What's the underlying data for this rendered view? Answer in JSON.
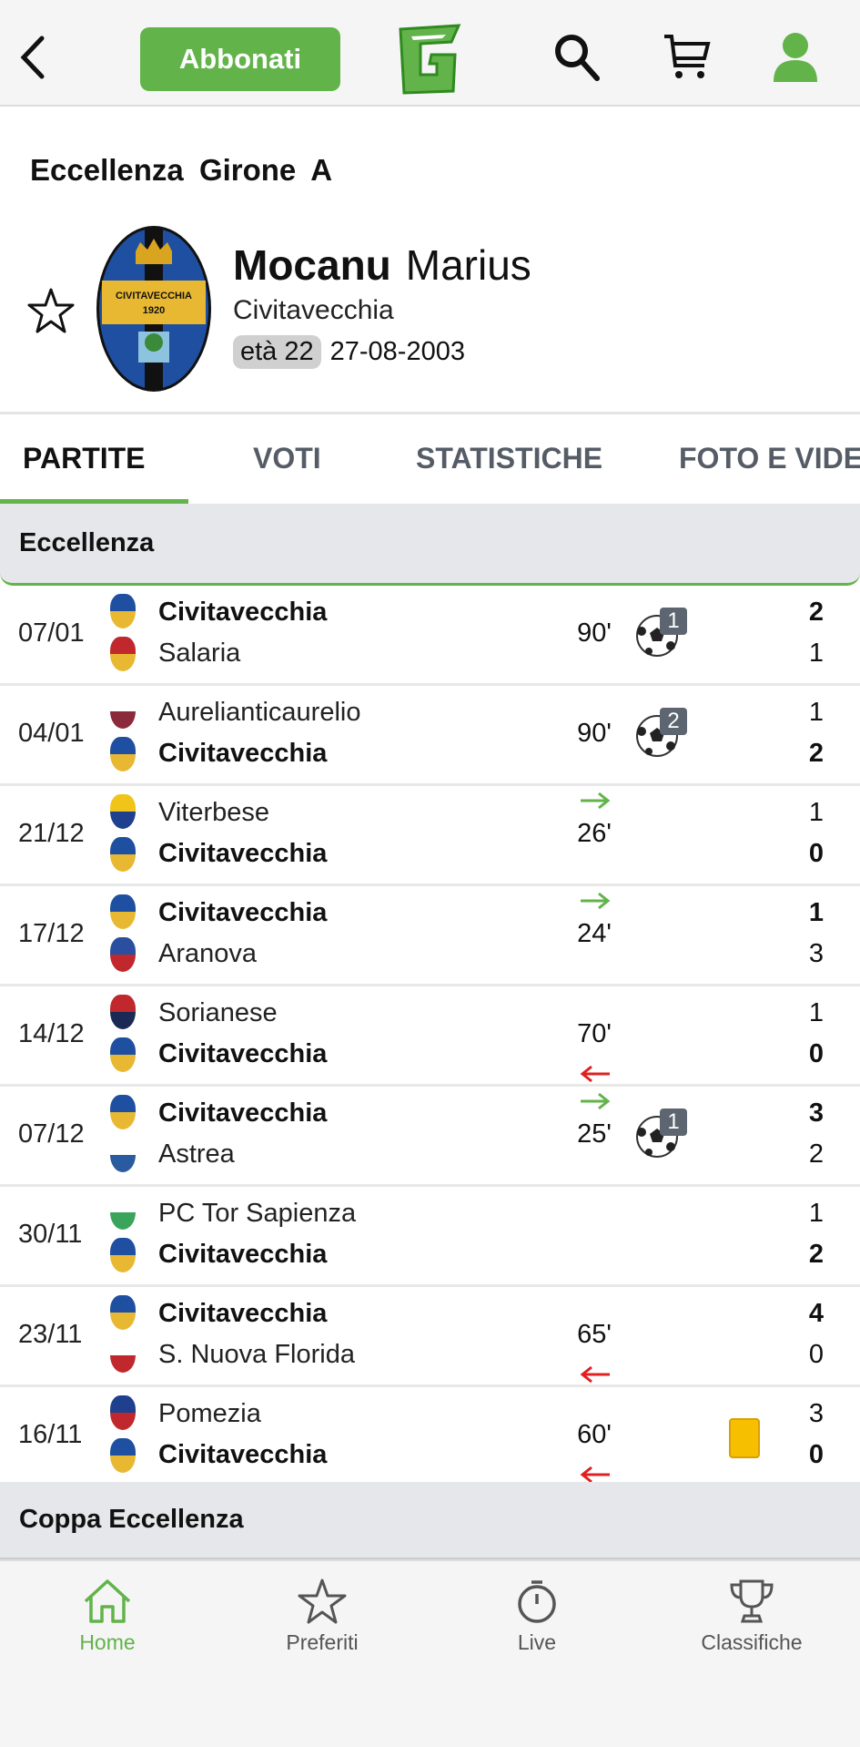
{
  "header": {
    "back_icon": "chevron-left-icon",
    "subscribe_label": "Abbonati",
    "logo_letter": "G",
    "icons": [
      "search-icon",
      "cart-icon",
      "user-icon"
    ],
    "accent": "#62b34a"
  },
  "league": "Eccellenza  Girone A",
  "player": {
    "last_name": "Mocanu",
    "first_name": "Marius",
    "team": "Civitavecchia",
    "age_label": "età 22",
    "birth_date": "27-08-2003",
    "crest_text": "CIVITAVECCHIA",
    "crest_year": "1920"
  },
  "tabs": [
    "PARTITE",
    "VOTI",
    "STATISTICHE",
    "FOTO E VIDEO"
  ],
  "active_tab": "PARTITE",
  "sections": [
    {
      "title": "Eccellenza",
      "matches": [
        {
          "date": "07/01",
          "home": "Civitavecchia",
          "away": "Salaria",
          "home_score": "2",
          "away_score": "1",
          "player_side": "home",
          "minutes": "90'",
          "sub_in": false,
          "sub_out": false,
          "goals": "1",
          "yellow": false
        },
        {
          "date": "04/01",
          "home": "Aurelianticaurelio",
          "away": "Civitavecchia",
          "home_score": "1",
          "away_score": "2",
          "player_side": "away",
          "minutes": "90'",
          "sub_in": false,
          "sub_out": false,
          "goals": "2",
          "yellow": false
        },
        {
          "date": "21/12",
          "home": "Viterbese",
          "away": "Civitavecchia",
          "home_score": "1",
          "away_score": "0",
          "player_side": "away",
          "minutes": "26'",
          "sub_in": true,
          "sub_out": false,
          "goals": "",
          "yellow": false
        },
        {
          "date": "17/12",
          "home": "Civitavecchia",
          "away": "Aranova",
          "home_score": "1",
          "away_score": "3",
          "player_side": "home",
          "minutes": "24'",
          "sub_in": true,
          "sub_out": false,
          "goals": "",
          "yellow": false
        },
        {
          "date": "14/12",
          "home": "Sorianese",
          "away": "Civitavecchia",
          "home_score": "1",
          "away_score": "0",
          "player_side": "away",
          "minutes": "70'",
          "sub_in": false,
          "sub_out": true,
          "goals": "",
          "yellow": false
        },
        {
          "date": "07/12",
          "home": "Civitavecchia",
          "away": "Astrea",
          "home_score": "3",
          "away_score": "2",
          "player_side": "home",
          "minutes": "25'",
          "sub_in": true,
          "sub_out": false,
          "goals": "1",
          "yellow": false
        },
        {
          "date": "30/11",
          "home": "PC Tor Sapienza",
          "away": "Civitavecchia",
          "home_score": "1",
          "away_score": "2",
          "player_side": "away",
          "minutes": "",
          "sub_in": false,
          "sub_out": false,
          "goals": "",
          "yellow": false
        },
        {
          "date": "23/11",
          "home": "Civitavecchia",
          "away": "S. Nuova Florida",
          "home_score": "4",
          "away_score": "0",
          "player_side": "home",
          "minutes": "65'",
          "sub_in": false,
          "sub_out": true,
          "goals": "",
          "yellow": false
        },
        {
          "date": "16/11",
          "home": "Pomezia",
          "away": "Civitavecchia",
          "home_score": "3",
          "away_score": "0",
          "player_side": "away",
          "minutes": "60'",
          "sub_in": false,
          "sub_out": true,
          "goals": "",
          "yellow": true
        }
      ]
    },
    {
      "title": "Coppa Eccellenza",
      "matches": []
    }
  ],
  "crest_colors": {
    "Civitavecchia": [
      "#1f4fa0",
      "#e8b832"
    ],
    "Salaria": [
      "#c0282d",
      "#e8b832"
    ],
    "Aurelianticaurelio": [
      "#ffffff",
      "#8a2a3a"
    ],
    "Viterbese": [
      "#f0c419",
      "#1f3f8f"
    ],
    "Aranova": [
      "#2a4fa0",
      "#c0282d"
    ],
    "Sorianese": [
      "#c0282d",
      "#1a2a55"
    ],
    "Astrea": [
      "#ffffff",
      "#2a5aa0"
    ],
    "PC Tor Sapienza": [
      "#ffffff",
      "#3aa55a"
    ],
    "S. Nuova Florida": [
      "#ffffff",
      "#c0282d"
    ],
    "Pomezia": [
      "#1f3f8f",
      "#c0282d"
    ]
  },
  "bottom_nav": [
    {
      "label": "Home",
      "icon": "home-icon",
      "active": true
    },
    {
      "label": "Preferiti",
      "icon": "star-icon",
      "active": false
    },
    {
      "label": "Live",
      "icon": "stopwatch-icon",
      "active": false
    },
    {
      "label": "Classifiche",
      "icon": "trophy-icon",
      "active": false
    }
  ]
}
